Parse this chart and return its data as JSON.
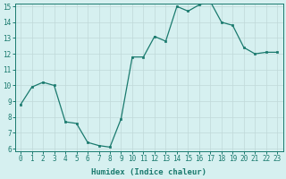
{
  "xlabel": "Humidex (Indice chaleur)",
  "x": [
    0,
    1,
    2,
    3,
    4,
    5,
    6,
    7,
    8,
    9,
    10,
    11,
    12,
    13,
    14,
    15,
    16,
    17,
    18,
    19,
    20,
    21,
    22,
    23
  ],
  "y": [
    8.8,
    9.9,
    10.2,
    10.0,
    7.7,
    7.6,
    6.4,
    6.2,
    6.1,
    7.9,
    11.8,
    11.8,
    13.1,
    12.8,
    15.0,
    14.7,
    15.1,
    15.3,
    14.0,
    13.8,
    12.4,
    12.0,
    12.1,
    12.1
  ],
  "line_color": "#1a7a6e",
  "marker": "s",
  "marker_size": 2.0,
  "bg_color": "#d6f0f0",
  "grid_color": "#c0d8d8",
  "ylim": [
    6,
    15
  ],
  "xlim": [
    -0.5,
    23.5
  ],
  "yticks": [
    6,
    7,
    8,
    9,
    10,
    11,
    12,
    13,
    14,
    15
  ],
  "xticks": [
    0,
    1,
    2,
    3,
    4,
    5,
    6,
    7,
    8,
    9,
    10,
    11,
    12,
    13,
    14,
    15,
    16,
    17,
    18,
    19,
    20,
    21,
    22,
    23
  ],
  "tick_fontsize": 5.5,
  "label_fontsize": 6.5,
  "axis_color": "#1a7a6e",
  "linewidth": 0.9
}
